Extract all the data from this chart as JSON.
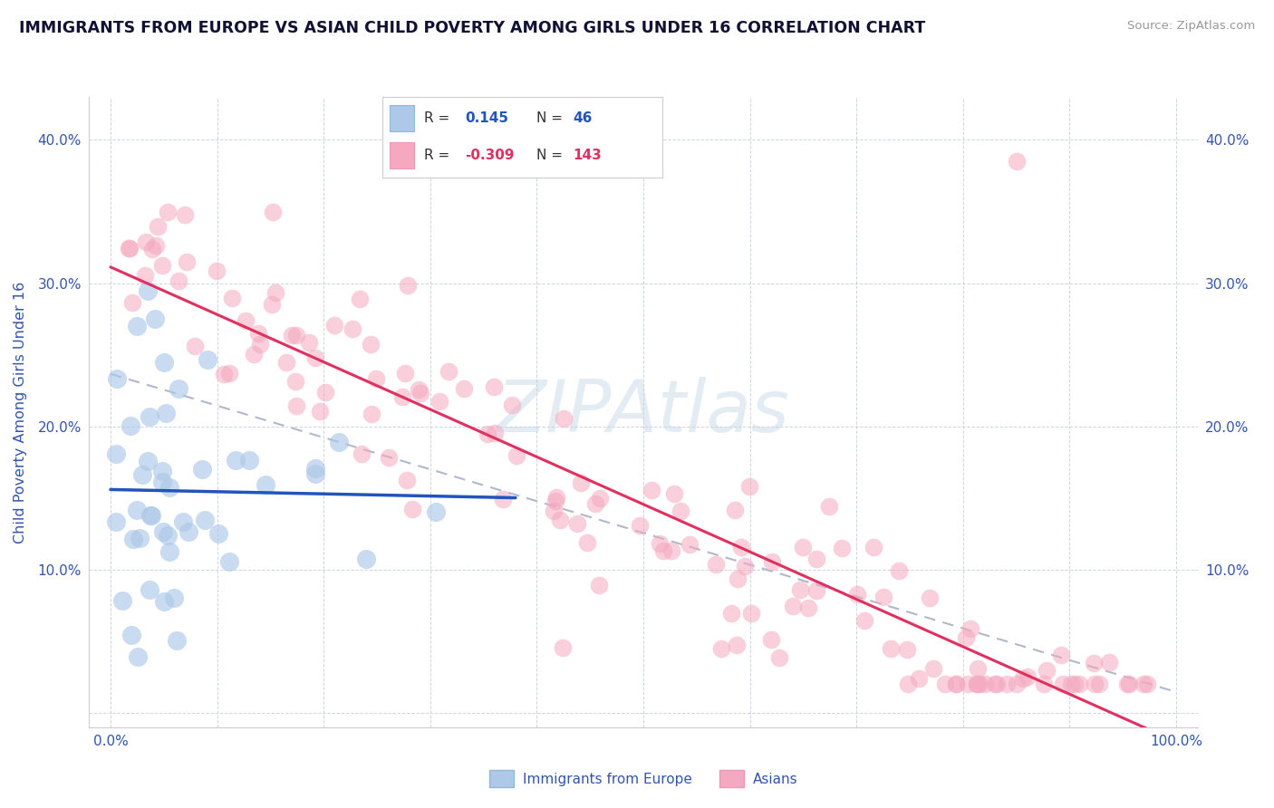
{
  "title": "IMMIGRANTS FROM EUROPE VS ASIAN CHILD POVERTY AMONG GIRLS UNDER 16 CORRELATION CHART",
  "source": "Source: ZipAtlas.com",
  "ylabel": "Child Poverty Among Girls Under 16",
  "xlim": [
    -2,
    102
  ],
  "ylim": [
    -1,
    43
  ],
  "blue_R": 0.145,
  "blue_N": 46,
  "pink_R": -0.309,
  "pink_N": 143,
  "blue_color": "#adc8e8",
  "pink_color": "#f5a8c0",
  "blue_line_color": "#2255bb",
  "pink_line_color": "#e03060",
  "dashed_line_color": "#b0b8cc",
  "watermark": "ZIPAtlas",
  "background_color": "#ffffff",
  "grid_color": "#c8d0e0",
  "title_color": "#111133",
  "axis_label_color": "#3355aa",
  "tick_label_color": "#3355aa",
  "legend_label_blue": "Immigrants from Europe",
  "legend_label_pink": "Asians"
}
